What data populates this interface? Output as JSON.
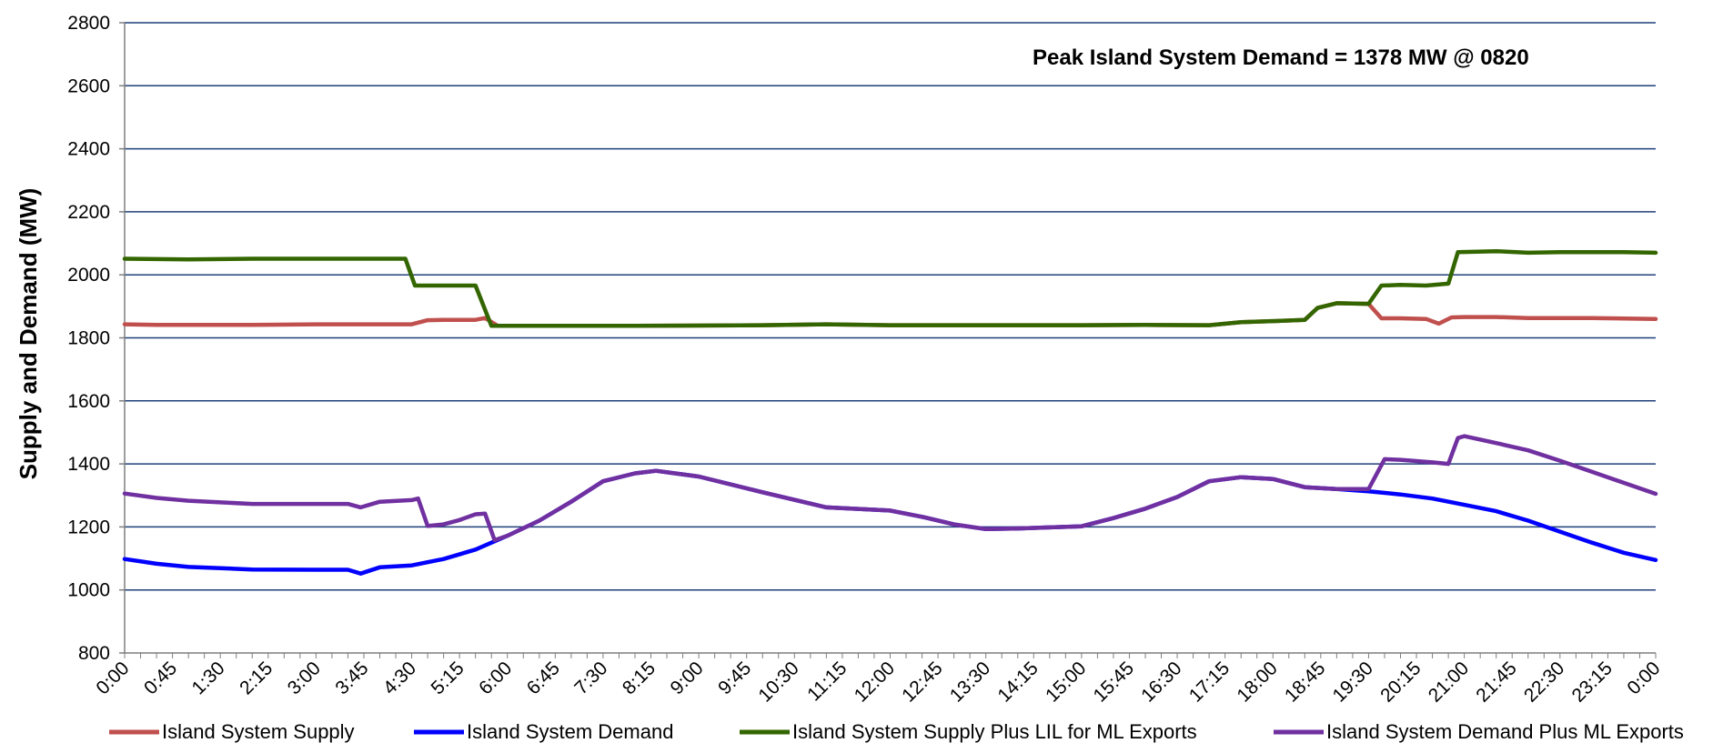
{
  "chart_data": {
    "type": "line",
    "title": "",
    "xlabel": "",
    "ylabel": "Supply and Demand (MW)",
    "ylim": [
      800,
      2800
    ],
    "yticks": [
      800,
      1000,
      1200,
      1400,
      1600,
      1800,
      2000,
      2200,
      2400,
      2600,
      2800
    ],
    "x_tick_labels": [
      "0:00",
      "0:45",
      "1:30",
      "2:15",
      "3:00",
      "3:45",
      "4:30",
      "5:15",
      "6:00",
      "6:45",
      "7:30",
      "8:15",
      "9:00",
      "9:45",
      "10:30",
      "11:15",
      "12:00",
      "12:45",
      "13:30",
      "14:15",
      "15:00",
      "15:45",
      "16:30",
      "17:15",
      "18:00",
      "18:45",
      "19:30",
      "20:15",
      "21:00",
      "21:45",
      "22:30",
      "23:15",
      "0:00"
    ],
    "grid": true,
    "legend_position": "bottom",
    "annotation": "Peak Island System Demand = 1378 MW @ 0820",
    "series": [
      {
        "name": "Island System Supply",
        "color": "#c0504d",
        "points": [
          [
            0,
            1843
          ],
          [
            0.5,
            1841
          ],
          [
            1,
            1841
          ],
          [
            2,
            1841
          ],
          [
            3,
            1843
          ],
          [
            3.5,
            1843
          ],
          [
            4,
            1843
          ],
          [
            4.5,
            1843
          ],
          [
            4.75,
            1856
          ],
          [
            5,
            1857
          ],
          [
            5.5,
            1857
          ],
          [
            5.65,
            1863
          ],
          [
            5.85,
            1838
          ],
          [
            6.5,
            1838
          ],
          [
            8,
            1838
          ],
          [
            10,
            1840
          ],
          [
            11,
            1843
          ],
          [
            12,
            1840
          ],
          [
            13,
            1840
          ],
          [
            14,
            1840
          ],
          [
            15,
            1840
          ],
          [
            16,
            1841
          ],
          [
            17,
            1840
          ],
          [
            17.5,
            1850
          ],
          [
            18,
            1853
          ],
          [
            18.5,
            1857
          ],
          [
            18.7,
            1895
          ],
          [
            19,
            1910
          ],
          [
            19.5,
            1908
          ],
          [
            19.7,
            1862
          ],
          [
            20,
            1862
          ],
          [
            20.4,
            1860
          ],
          [
            20.6,
            1845
          ],
          [
            20.8,
            1865
          ],
          [
            21,
            1866
          ],
          [
            21.5,
            1866
          ],
          [
            22,
            1863
          ],
          [
            23,
            1863
          ],
          [
            24,
            1860
          ]
        ]
      },
      {
        "name": "Island System Demand",
        "color": "#0000ff",
        "points": [
          [
            0,
            1098
          ],
          [
            0.5,
            1083
          ],
          [
            1,
            1073
          ],
          [
            2,
            1065
          ],
          [
            3,
            1064
          ],
          [
            3.5,
            1064
          ],
          [
            3.7,
            1052
          ],
          [
            4,
            1072
          ],
          [
            4.5,
            1078
          ],
          [
            5,
            1098
          ],
          [
            5.5,
            1128
          ],
          [
            6,
            1172
          ],
          [
            6.5,
            1220
          ],
          [
            7,
            1280
          ],
          [
            7.5,
            1345
          ],
          [
            8,
            1370
          ],
          [
            8.33,
            1378
          ],
          [
            9,
            1360
          ],
          [
            10,
            1310
          ],
          [
            11,
            1262
          ],
          [
            12,
            1252
          ],
          [
            12.5,
            1232
          ],
          [
            13,
            1208
          ],
          [
            13.5,
            1193
          ],
          [
            14,
            1195
          ],
          [
            15,
            1202
          ],
          [
            15.5,
            1228
          ],
          [
            16,
            1258
          ],
          [
            16.5,
            1295
          ],
          [
            17,
            1345
          ],
          [
            17.5,
            1358
          ],
          [
            18,
            1352
          ],
          [
            18.5,
            1326
          ],
          [
            19,
            1320
          ],
          [
            19.5,
            1313
          ],
          [
            20,
            1303
          ],
          [
            20.5,
            1290
          ],
          [
            21,
            1270
          ],
          [
            21.5,
            1250
          ],
          [
            22,
            1220
          ],
          [
            22.5,
            1185
          ],
          [
            23,
            1150
          ],
          [
            23.5,
            1118
          ],
          [
            24,
            1095
          ]
        ]
      },
      {
        "name": "Island System Supply Plus LIL for ML Exports",
        "color": "#336600",
        "points": [
          [
            0,
            2051
          ],
          [
            1,
            2049
          ],
          [
            2,
            2051
          ],
          [
            3,
            2051
          ],
          [
            4,
            2051
          ],
          [
            4.4,
            2051
          ],
          [
            4.55,
            1966
          ],
          [
            5,
            1966
          ],
          [
            5.25,
            1966
          ],
          [
            5.5,
            1966
          ],
          [
            5.75,
            1838
          ],
          [
            6.5,
            1838
          ],
          [
            8,
            1838
          ],
          [
            10,
            1840
          ],
          [
            11,
            1843
          ],
          [
            12,
            1840
          ],
          [
            13,
            1840
          ],
          [
            14,
            1840
          ],
          [
            15,
            1840
          ],
          [
            16,
            1841
          ],
          [
            17,
            1840
          ],
          [
            17.5,
            1850
          ],
          [
            18,
            1853
          ],
          [
            18.5,
            1857
          ],
          [
            18.7,
            1895
          ],
          [
            19,
            1910
          ],
          [
            19.5,
            1908
          ],
          [
            19.7,
            1966
          ],
          [
            20,
            1968
          ],
          [
            20.4,
            1966
          ],
          [
            20.75,
            1972
          ],
          [
            20.9,
            2072
          ],
          [
            21.5,
            2075
          ],
          [
            22,
            2070
          ],
          [
            22.5,
            2072
          ],
          [
            23.5,
            2072
          ],
          [
            24,
            2070
          ]
        ]
      },
      {
        "name": "Island System Demand Plus ML Exports",
        "color": "#7030a0",
        "points": [
          [
            0,
            1306
          ],
          [
            0.5,
            1292
          ],
          [
            1,
            1283
          ],
          [
            2,
            1273
          ],
          [
            3,
            1273
          ],
          [
            3.5,
            1273
          ],
          [
            3.7,
            1262
          ],
          [
            4,
            1280
          ],
          [
            4.5,
            1285
          ],
          [
            4.6,
            1290
          ],
          [
            4.75,
            1203
          ],
          [
            5,
            1208
          ],
          [
            5.25,
            1222
          ],
          [
            5.5,
            1240
          ],
          [
            5.65,
            1242
          ],
          [
            5.8,
            1158
          ],
          [
            6,
            1172
          ],
          [
            6.5,
            1220
          ],
          [
            7,
            1280
          ],
          [
            7.5,
            1345
          ],
          [
            8,
            1370
          ],
          [
            8.33,
            1378
          ],
          [
            9,
            1360
          ],
          [
            10,
            1310
          ],
          [
            11,
            1262
          ],
          [
            12,
            1252
          ],
          [
            12.5,
            1232
          ],
          [
            13,
            1208
          ],
          [
            13.5,
            1193
          ],
          [
            14,
            1195
          ],
          [
            15,
            1202
          ],
          [
            15.5,
            1228
          ],
          [
            16,
            1258
          ],
          [
            16.5,
            1295
          ],
          [
            17,
            1345
          ],
          [
            17.5,
            1358
          ],
          [
            18,
            1352
          ],
          [
            18.5,
            1326
          ],
          [
            19,
            1320
          ],
          [
            19.5,
            1320
          ],
          [
            19.75,
            1415
          ],
          [
            20,
            1413
          ],
          [
            20.5,
            1405
          ],
          [
            20.75,
            1400
          ],
          [
            20.9,
            1482
          ],
          [
            21,
            1488
          ],
          [
            21.5,
            1466
          ],
          [
            22,
            1443
          ],
          [
            22.5,
            1410
          ],
          [
            23,
            1375
          ],
          [
            23.5,
            1340
          ],
          [
            24,
            1305
          ]
        ]
      }
    ]
  }
}
